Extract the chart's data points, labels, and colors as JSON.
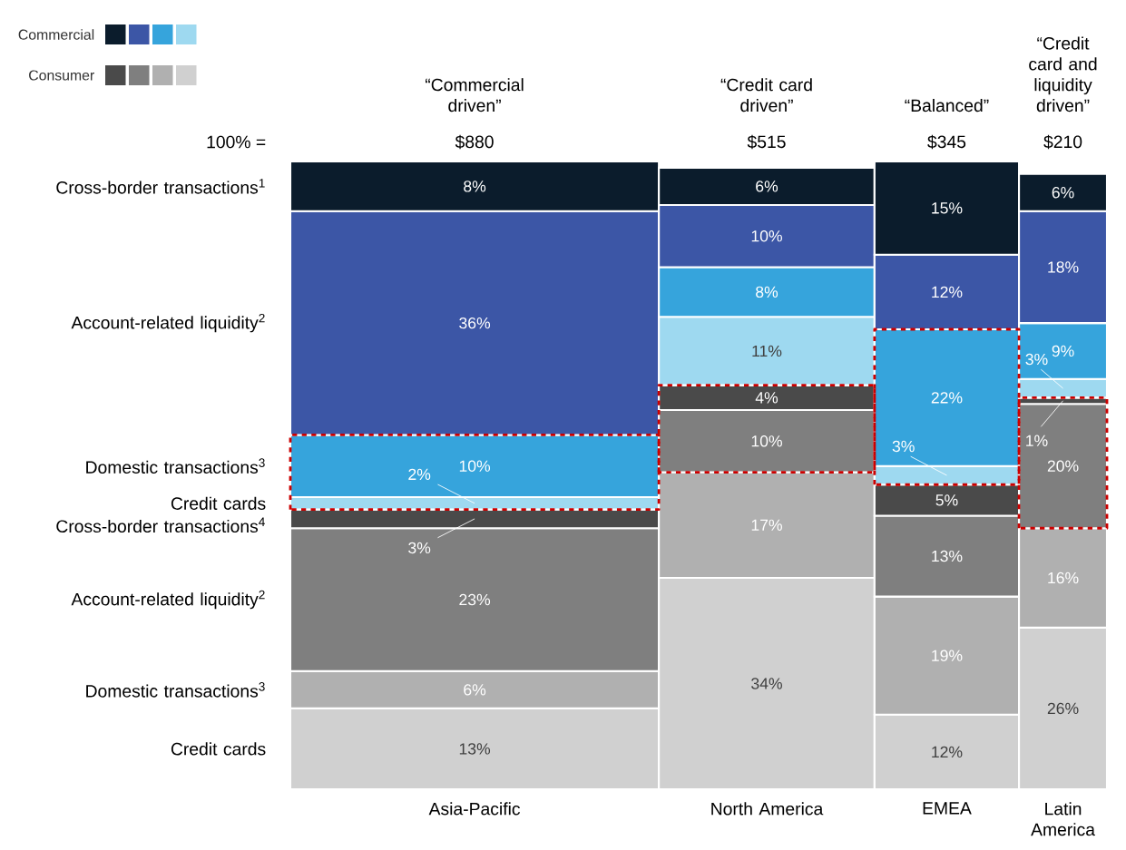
{
  "chart_data": {
    "type": "bar",
    "stacked": true,
    "legend": "top left",
    "categories": [
      "Asia-Pacific",
      "North America",
      "EMEA",
      "Latin America"
    ],
    "series": [
      {
        "name": "Credit cards",
        "color": "#d0d0d0",
        "values": [
          13,
          34,
          12,
          26
        ],
        "value_labels": [
          "13%",
          "34%",
          "12%",
          "26%"
        ]
      },
      {
        "name": "Domestic transactions$^{3}$",
        "color": "#b0b0b0",
        "values": [
          6,
          17,
          19,
          16
        ],
        "value_labels": [
          "6%",
          "17%",
          "19%",
          "16%"
        ]
      },
      {
        "name": "Account-related liquidity$^{2}$",
        "color": "#7f7f7f",
        "values": [
          23,
          10,
          13,
          20
        ],
        "value_labels": [
          "23%",
          "10%",
          "13%",
          "20%"
        ]
      },
      {
        "name": "Cross-border transactions$^{4}$",
        "color": "#4a4a4a",
        "values": [
          3,
          4,
          5,
          1
        ],
        "value_labels": [
          "3%",
          "4%",
          "5%",
          "1%"
        ]
      },
      {
        "name": "Credit cards",
        "color": "#9ed9f0",
        "values": [
          2,
          11,
          3,
          3
        ],
        "value_labels": [
          "2%",
          "11%",
          "3%",
          "3%"
        ]
      },
      {
        "name": "Domestic transactions$^{3}$",
        "color": "#36a4dc",
        "values": [
          10,
          8,
          22,
          9
        ],
        "value_labels": [
          "10%",
          "8%",
          "22%",
          "9%"
        ]
      },
      {
        "name": "Account-related liquidity$^{2}$",
        "color": "#3c56a6",
        "values": [
          36,
          10,
          12,
          18
        ],
        "value_labels": [
          "36%",
          "10%",
          "12%",
          "18%"
        ]
      },
      {
        "name": "Cross-border transactions$^{1}$",
        "color": "#0b1c2c",
        "values": [
          8,
          6,
          15,
          6
        ],
        "value_labels": [
          "8%",
          "6%",
          "15%",
          "6%"
        ]
      }
    ],
    "annotations": [
      "“Commercial driven”",
      "“Credit card driven”",
      "“Balanced”",
      "“Credit card and liquidity driven”",
      "100% =",
      "$880",
      "$515",
      "$345",
      "$210",
      "Commercial",
      "Consumer"
    ]
  }
}
